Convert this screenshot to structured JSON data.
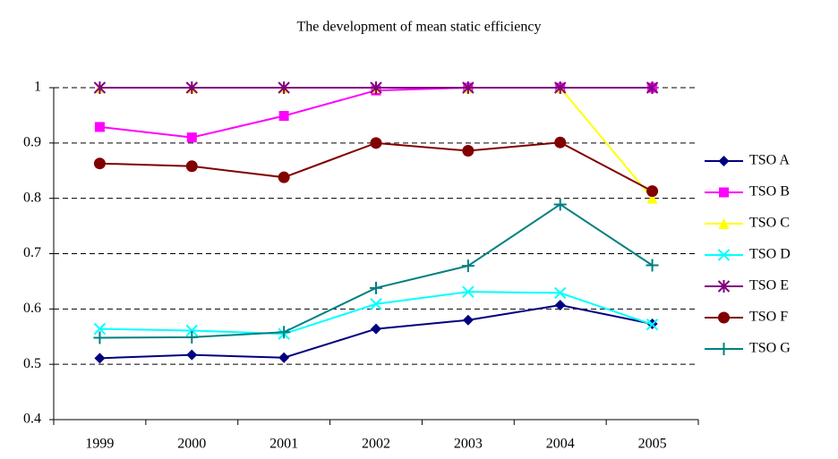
{
  "chart_data": {
    "type": "line",
    "title": "The development of mean static efficiency",
    "categories": [
      "1999",
      "2000",
      "2001",
      "2002",
      "2003",
      "2004",
      "2005"
    ],
    "ylim": [
      0.4,
      1
    ],
    "yticks": [
      0.4,
      0.5,
      0.6,
      0.7,
      0.8,
      0.9,
      1
    ],
    "grid": true,
    "legend": "right",
    "series": [
      {
        "name": "TSO A",
        "color": "#000080",
        "marker": "diamond",
        "values": [
          0.511,
          0.517,
          0.512,
          0.564,
          0.58,
          0.607,
          0.573
        ]
      },
      {
        "name": "TSO B",
        "color": "#ff00ff",
        "marker": "square",
        "values": [
          0.929,
          0.91,
          0.949,
          0.995,
          1,
          1,
          1
        ]
      },
      {
        "name": "TSO C",
        "color": "#ffff00",
        "marker": "triangle",
        "values": [
          1,
          1,
          1,
          1,
          1,
          1,
          0.8
        ]
      },
      {
        "name": "TSO D",
        "color": "#00ffff",
        "marker": "x",
        "values": [
          0.564,
          0.561,
          0.555,
          0.609,
          0.631,
          0.629,
          0.572
        ]
      },
      {
        "name": "TSO E",
        "color": "#800080",
        "marker": "asterisk",
        "values": [
          1,
          1,
          1,
          1,
          1,
          1,
          1
        ]
      },
      {
        "name": "TSO F",
        "color": "#800000",
        "marker": "circle",
        "values": [
          0.863,
          0.858,
          0.838,
          0.9,
          0.886,
          0.901,
          0.813
        ]
      },
      {
        "name": "TSO G",
        "color": "#008080",
        "marker": "plus",
        "values": [
          0.548,
          0.549,
          0.558,
          0.638,
          0.678,
          0.789,
          0.679
        ]
      }
    ]
  }
}
